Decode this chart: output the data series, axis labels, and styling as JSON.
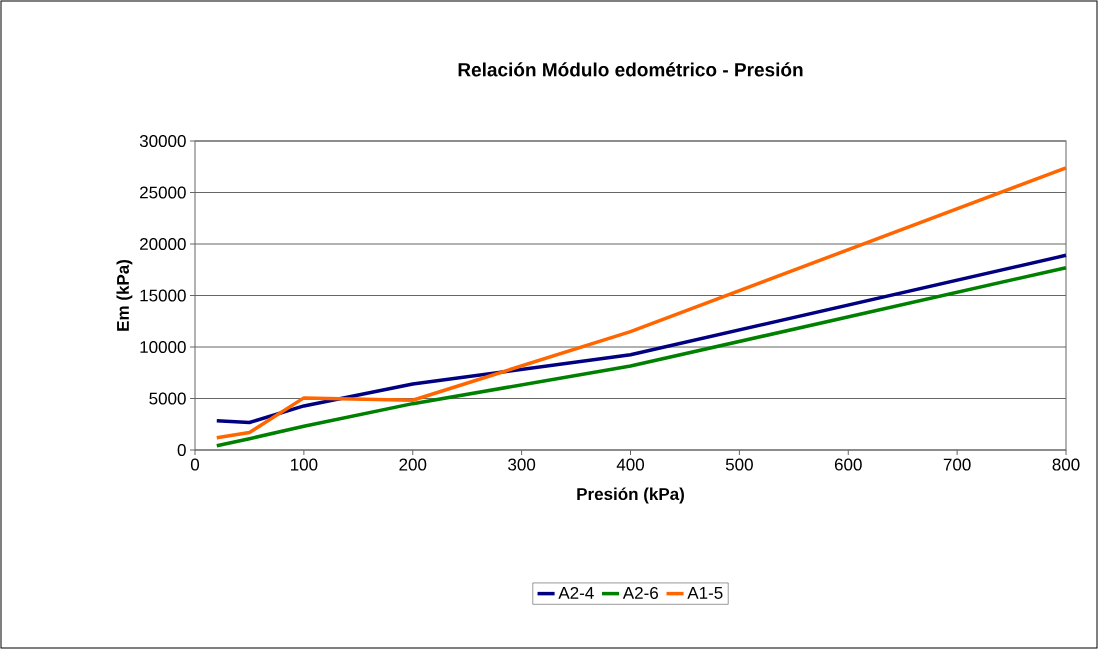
{
  "chart_data": {
    "type": "line",
    "title": "Relación Módulo edométrico - Presión",
    "xlabel": "Presión (kPa)",
    "ylabel": "Em (kPa)",
    "x": [
      20,
      50,
      100,
      200,
      400,
      800
    ],
    "series": [
      {
        "name": "A2-4",
        "color": "#000080",
        "values": [
          2830,
          2670,
          4280,
          6400,
          9250,
          18900
        ]
      },
      {
        "name": "A2-6",
        "color": "#008000",
        "values": [
          420,
          1100,
          2300,
          4500,
          8150,
          17700
        ]
      },
      {
        "name": "A1-5",
        "color": "#ff6600",
        "values": [
          1190,
          1700,
          5060,
          4830,
          11500,
          27400
        ]
      }
    ],
    "xlim": [
      0,
      800
    ],
    "xticks": [
      0,
      100,
      200,
      300,
      400,
      500,
      600,
      700,
      800
    ],
    "ylim": [
      0,
      30000
    ],
    "yticks": [
      0,
      5000,
      10000,
      15000,
      20000,
      25000,
      30000
    ],
    "grid": "y",
    "legend": "bottom",
    "marker": "none",
    "line_style": "solid"
  }
}
